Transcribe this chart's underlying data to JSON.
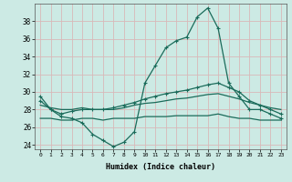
{
  "x": [
    0,
    1,
    2,
    3,
    4,
    5,
    6,
    7,
    8,
    9,
    10,
    11,
    12,
    13,
    14,
    15,
    16,
    17,
    18,
    19,
    20,
    21,
    22,
    23
  ],
  "line1_main": [
    29.5,
    28.0,
    27.2,
    27.0,
    26.5,
    25.2,
    24.5,
    23.8,
    24.3,
    25.5,
    31.0,
    33.0,
    35.0,
    35.8,
    36.2,
    38.5,
    39.5,
    37.2,
    31.0,
    29.5,
    28.0,
    28.0,
    27.5,
    27.0
  ],
  "line2_upper": [
    29.0,
    28.0,
    27.5,
    27.8,
    28.0,
    28.0,
    28.0,
    28.2,
    28.5,
    28.8,
    29.2,
    29.5,
    29.8,
    30.0,
    30.2,
    30.5,
    30.8,
    31.0,
    30.5,
    30.0,
    29.0,
    28.5,
    28.0,
    27.5
  ],
  "line3_mid": [
    28.5,
    28.2,
    28.0,
    28.0,
    28.2,
    28.0,
    28.0,
    28.0,
    28.2,
    28.5,
    28.7,
    28.8,
    29.0,
    29.2,
    29.3,
    29.5,
    29.7,
    29.8,
    29.5,
    29.2,
    28.8,
    28.5,
    28.2,
    28.0
  ],
  "line4_lower": [
    27.0,
    27.0,
    26.8,
    26.8,
    27.0,
    27.0,
    26.8,
    27.0,
    27.0,
    27.0,
    27.2,
    27.2,
    27.2,
    27.3,
    27.3,
    27.3,
    27.3,
    27.5,
    27.2,
    27.0,
    27.0,
    26.8,
    26.8,
    26.8
  ],
  "bg_color": "#cceae4",
  "line_color": "#1a6b5a",
  "grid_color": "#d8b8b8",
  "xlabel": "Humidex (Indice chaleur)",
  "ylim": [
    23.5,
    40
  ],
  "xlim": [
    -0.5,
    23.5
  ],
  "yticks": [
    24,
    26,
    28,
    30,
    32,
    34,
    36,
    38
  ],
  "xticks": [
    0,
    1,
    2,
    3,
    4,
    5,
    6,
    7,
    8,
    9,
    10,
    11,
    12,
    13,
    14,
    15,
    16,
    17,
    18,
    19,
    20,
    21,
    22,
    23
  ]
}
